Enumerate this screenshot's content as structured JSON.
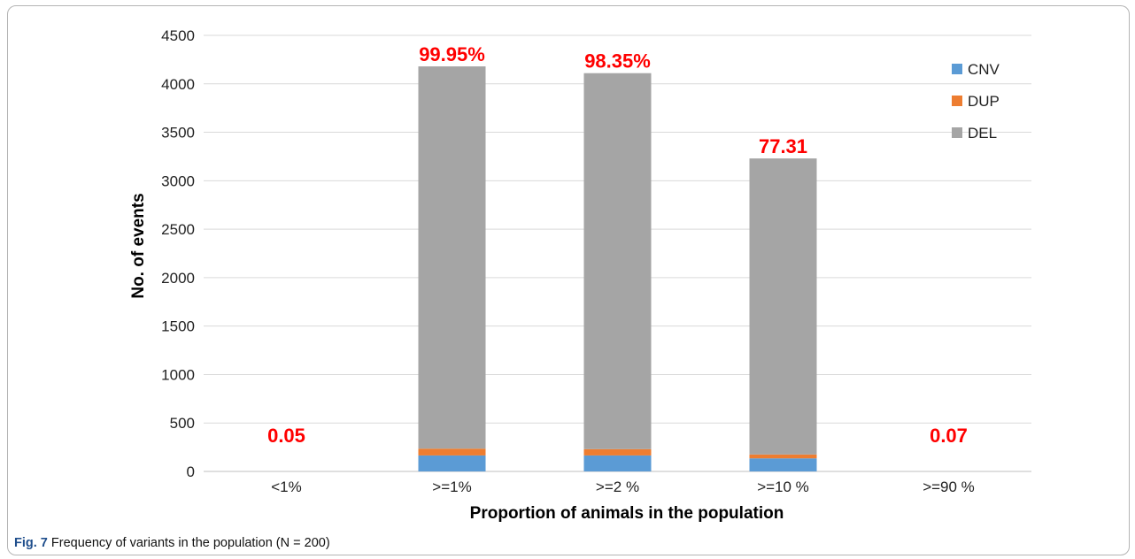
{
  "chart_data": {
    "type": "bar",
    "stacked": true,
    "categories": [
      "<1%",
      ">=1%",
      ">=2 %",
      ">=10 %",
      ">=90 %"
    ],
    "series": [
      {
        "name": "CNV",
        "values": [
          0,
          165,
          165,
          135,
          0
        ],
        "color": "#5b9bd5"
      },
      {
        "name": "DUP",
        "values": [
          0,
          70,
          65,
          40,
          0
        ],
        "color": "#ed7d31"
      },
      {
        "name": "DEL",
        "values": [
          0,
          3945,
          3880,
          3055,
          0
        ],
        "color": "#a5a5a5"
      }
    ],
    "bar_labels": [
      "0.05",
      "99.95%",
      "98.35%",
      "77.31",
      "0.07"
    ],
    "bar_label_color": "#ff0000",
    "xlabel": "Proportion of animals in the population",
    "ylabel": "No. of events",
    "ylim": [
      0,
      4500
    ],
    "yticks": [
      0,
      500,
      1000,
      1500,
      2000,
      2500,
      3000,
      3500,
      4000,
      4500
    ],
    "grid": true,
    "legend_position": "top-right"
  },
  "caption": {
    "label": "Fig. 7",
    "text": "Frequency of variants in the population (N = 200)"
  }
}
